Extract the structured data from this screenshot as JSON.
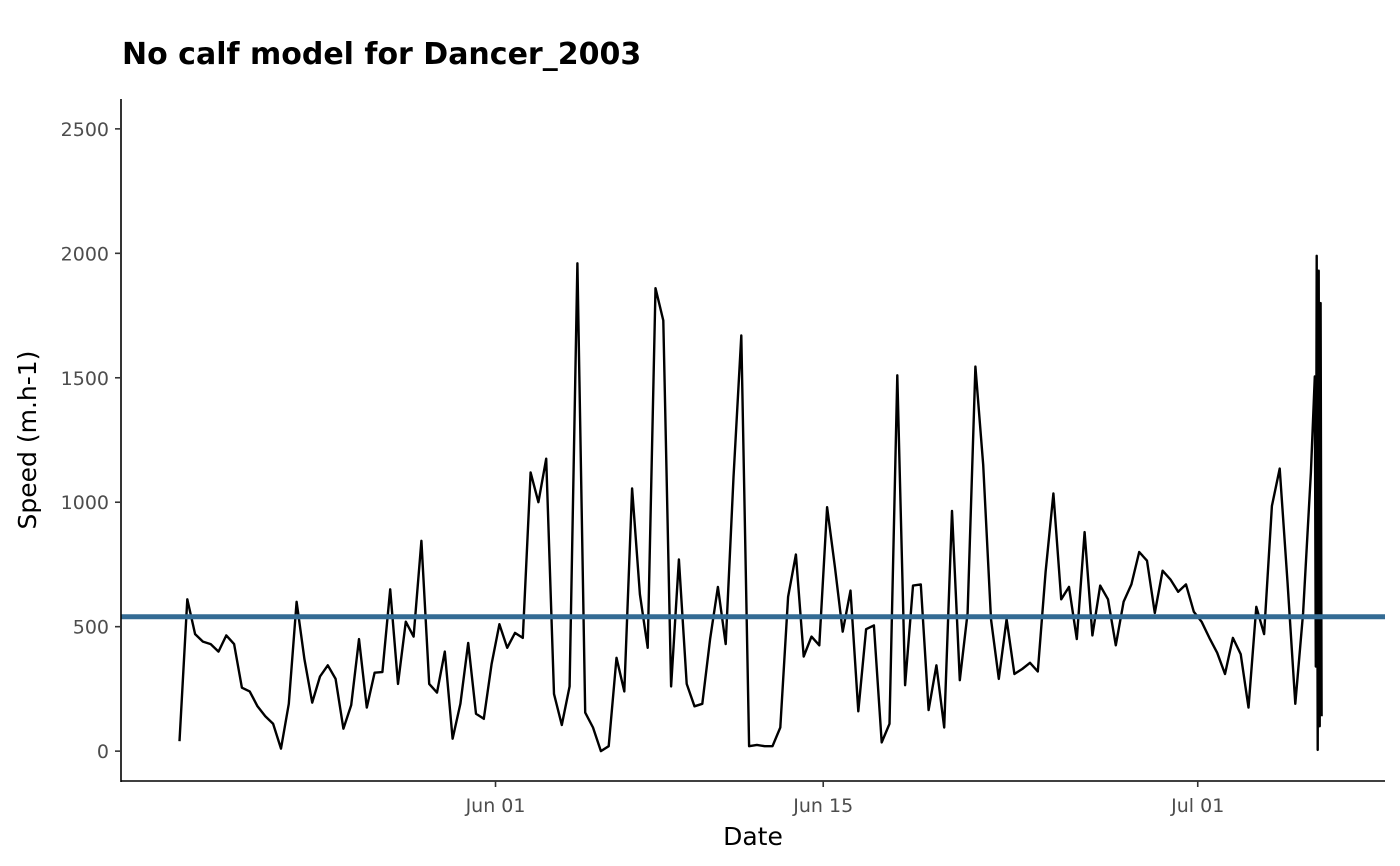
{
  "chart_data": {
    "type": "line",
    "title": "No calf model for Dancer_2003",
    "xlabel": "Date",
    "ylabel": "Speed (m.h-1)",
    "ylim": [
      -120,
      2620
    ],
    "yticks": [
      0,
      500,
      1000,
      1500,
      2000,
      2500
    ],
    "xlim": [
      "2003-05-16",
      "2003-07-09"
    ],
    "xticks": [
      {
        "date": "2003-06-01",
        "label": "Jun 01"
      },
      {
        "date": "2003-06-15",
        "label": "Jun 15"
      },
      {
        "date": "2003-07-01",
        "label": "Jul 01"
      }
    ],
    "grid": false,
    "legend": "none",
    "hline": {
      "y": 540,
      "color": "#336b94"
    },
    "series": [
      {
        "color": "#000000",
        "points": [
          [
            "2003-05-18T12:00",
            40
          ],
          [
            "2003-05-18T20:00",
            610
          ],
          [
            "2003-05-19T04:00",
            470
          ],
          [
            "2003-05-19T12:00",
            440
          ],
          [
            "2003-05-19T20:00",
            430
          ],
          [
            "2003-05-20T04:00",
            400
          ],
          [
            "2003-05-20T12:00",
            465
          ],
          [
            "2003-05-20T20:00",
            430
          ],
          [
            "2003-05-21T04:00",
            255
          ],
          [
            "2003-05-21T12:00",
            240
          ],
          [
            "2003-05-21T20:00",
            180
          ],
          [
            "2003-05-22T04:00",
            140
          ],
          [
            "2003-05-22T12:00",
            110
          ],
          [
            "2003-05-22T20:00",
            10
          ],
          [
            "2003-05-23T04:00",
            190
          ],
          [
            "2003-05-23T12:00",
            600
          ],
          [
            "2003-05-23T20:00",
            370
          ],
          [
            "2003-05-24T04:00",
            195
          ],
          [
            "2003-05-24T12:00",
            300
          ],
          [
            "2003-05-24T20:00",
            345
          ],
          [
            "2003-05-25T04:00",
            290
          ],
          [
            "2003-05-25T12:00",
            90
          ],
          [
            "2003-05-25T20:00",
            185
          ],
          [
            "2003-05-26T04:00",
            450
          ],
          [
            "2003-05-26T12:00",
            175
          ],
          [
            "2003-05-26T20:00",
            315
          ],
          [
            "2003-05-27T04:00",
            318
          ],
          [
            "2003-05-27T12:00",
            650
          ],
          [
            "2003-05-27T20:00",
            270
          ],
          [
            "2003-05-28T04:00",
            520
          ],
          [
            "2003-05-28T12:00",
            460
          ],
          [
            "2003-05-28T20:00",
            845
          ],
          [
            "2003-05-29T04:00",
            270
          ],
          [
            "2003-05-29T12:00",
            235
          ],
          [
            "2003-05-29T20:00",
            400
          ],
          [
            "2003-05-30T04:00",
            50
          ],
          [
            "2003-05-30T12:00",
            190
          ],
          [
            "2003-05-30T20:00",
            435
          ],
          [
            "2003-05-31T04:00",
            150
          ],
          [
            "2003-05-31T12:00",
            130
          ],
          [
            "2003-05-31T20:00",
            350
          ],
          [
            "2003-06-01T04:00",
            510
          ],
          [
            "2003-06-01T12:00",
            415
          ],
          [
            "2003-06-01T20:00",
            475
          ],
          [
            "2003-06-02T04:00",
            455
          ],
          [
            "2003-06-02T12:00",
            1120
          ],
          [
            "2003-06-02T20:00",
            1000
          ],
          [
            "2003-06-03T04:00",
            1175
          ],
          [
            "2003-06-03T12:00",
            230
          ],
          [
            "2003-06-03T20:00",
            105
          ],
          [
            "2003-06-04T04:00",
            260
          ],
          [
            "2003-06-04T12:00",
            1960
          ],
          [
            "2003-06-04T20:00",
            155
          ],
          [
            "2003-06-05T04:00",
            95
          ],
          [
            "2003-06-05T12:00",
            0
          ],
          [
            "2003-06-05T20:00",
            20
          ],
          [
            "2003-06-06T04:00",
            375
          ],
          [
            "2003-06-06T12:00",
            240
          ],
          [
            "2003-06-06T20:00",
            1055
          ],
          [
            "2003-06-07T04:00",
            630
          ],
          [
            "2003-06-07T12:00",
            415
          ],
          [
            "2003-06-07T20:00",
            1860
          ],
          [
            "2003-06-08T04:00",
            1730
          ],
          [
            "2003-06-08T12:00",
            260
          ],
          [
            "2003-06-08T20:00",
            770
          ],
          [
            "2003-06-09T04:00",
            270
          ],
          [
            "2003-06-09T12:00",
            180
          ],
          [
            "2003-06-09T20:00",
            190
          ],
          [
            "2003-06-10T04:00",
            450
          ],
          [
            "2003-06-10T12:00",
            660
          ],
          [
            "2003-06-10T20:00",
            430
          ],
          [
            "2003-06-11T04:00",
            1100
          ],
          [
            "2003-06-11T12:00",
            1670
          ],
          [
            "2003-06-11T20:00",
            20
          ],
          [
            "2003-06-12T04:00",
            25
          ],
          [
            "2003-06-12T12:00",
            20
          ],
          [
            "2003-06-12T20:00",
            20
          ],
          [
            "2003-06-13T04:00",
            95
          ],
          [
            "2003-06-13T12:00",
            620
          ],
          [
            "2003-06-13T20:00",
            790
          ],
          [
            "2003-06-14T04:00",
            380
          ],
          [
            "2003-06-14T12:00",
            460
          ],
          [
            "2003-06-14T20:00",
            425
          ],
          [
            "2003-06-15T04:00",
            980
          ],
          [
            "2003-06-15T12:00",
            740
          ],
          [
            "2003-06-15T20:00",
            480
          ],
          [
            "2003-06-16T04:00",
            645
          ],
          [
            "2003-06-16T12:00",
            160
          ],
          [
            "2003-06-16T20:00",
            490
          ],
          [
            "2003-06-17T04:00",
            505
          ],
          [
            "2003-06-17T12:00",
            35
          ],
          [
            "2003-06-17T20:00",
            110
          ],
          [
            "2003-06-18T04:00",
            1510
          ],
          [
            "2003-06-18T12:00",
            265
          ],
          [
            "2003-06-18T20:00",
            665
          ],
          [
            "2003-06-19T04:00",
            670
          ],
          [
            "2003-06-19T12:00",
            165
          ],
          [
            "2003-06-19T20:00",
            345
          ],
          [
            "2003-06-20T04:00",
            95
          ],
          [
            "2003-06-20T12:00",
            965
          ],
          [
            "2003-06-20T20:00",
            285
          ],
          [
            "2003-06-21T04:00",
            555
          ],
          [
            "2003-06-21T12:00",
            1545
          ],
          [
            "2003-06-21T20:00",
            1150
          ],
          [
            "2003-06-22T04:00",
            530
          ],
          [
            "2003-06-22T12:00",
            290
          ],
          [
            "2003-06-22T20:00",
            530
          ],
          [
            "2003-06-23T04:00",
            310
          ],
          [
            "2003-06-23T12:00",
            330
          ],
          [
            "2003-06-23T20:00",
            355
          ],
          [
            "2003-06-24T04:00",
            320
          ],
          [
            "2003-06-24T12:00",
            720
          ],
          [
            "2003-06-24T20:00",
            1035
          ],
          [
            "2003-06-25T04:00",
            610
          ],
          [
            "2003-06-25T12:00",
            660
          ],
          [
            "2003-06-25T20:00",
            450
          ],
          [
            "2003-06-26T04:00",
            880
          ],
          [
            "2003-06-26T12:00",
            465
          ],
          [
            "2003-06-26T20:00",
            665
          ],
          [
            "2003-06-27T04:00",
            610
          ],
          [
            "2003-06-27T12:00",
            425
          ],
          [
            "2003-06-27T20:00",
            600
          ],
          [
            "2003-06-28T04:00",
            670
          ],
          [
            "2003-06-28T12:00",
            800
          ],
          [
            "2003-06-28T20:00",
            765
          ],
          [
            "2003-06-29T04:00",
            555
          ],
          [
            "2003-06-29T12:00",
            725
          ],
          [
            "2003-06-29T20:00",
            690
          ],
          [
            "2003-06-30T04:00",
            640
          ],
          [
            "2003-06-30T12:00",
            670
          ],
          [
            "2003-06-30T20:00",
            560
          ],
          [
            "2003-07-01T04:00",
            520
          ],
          [
            "2003-07-01T12:00",
            455
          ],
          [
            "2003-07-01T20:00",
            395
          ],
          [
            "2003-07-02T04:00",
            310
          ],
          [
            "2003-07-02T12:00",
            455
          ],
          [
            "2003-07-02T20:00",
            390
          ],
          [
            "2003-07-03T04:00",
            175
          ],
          [
            "2003-07-03T12:00",
            580
          ],
          [
            "2003-07-03T20:00",
            470
          ],
          [
            "2003-07-04T04:00",
            985
          ],
          [
            "2003-07-04T12:00",
            1135
          ],
          [
            "2003-07-04T20:00",
            680
          ],
          [
            "2003-07-05T04:00",
            190
          ],
          [
            "2003-07-05T12:00",
            555
          ],
          [
            "2003-07-05T20:00",
            1120
          ],
          [
            "2003-07-06T00:00",
            1505
          ],
          [
            "2003-07-06T01:00",
            340
          ],
          [
            "2003-07-06T02:00",
            1990
          ],
          [
            "2003-07-06T03:00",
            5
          ],
          [
            "2003-07-06T04:00",
            1930
          ],
          [
            "2003-07-06T05:00",
            100
          ],
          [
            "2003-07-06T06:00",
            1800
          ],
          [
            "2003-07-06T07:00",
            140
          ]
        ]
      }
    ]
  }
}
